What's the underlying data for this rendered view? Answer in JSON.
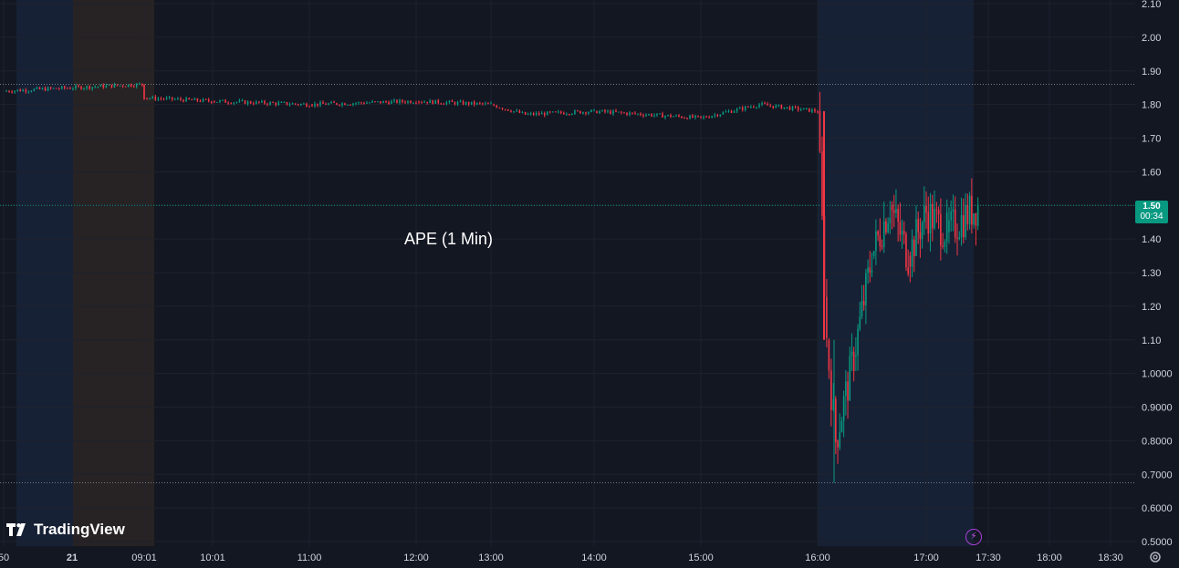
{
  "chart_data": {
    "type": "candlestick",
    "title": "APE (1 Min)",
    "y_ticks": [
      "2.10",
      "2.00",
      "1.90",
      "1.80",
      "1.70",
      "1.60",
      "1.50",
      "1.40",
      "1.30",
      "1.20",
      "1.10",
      "1.0000",
      "0.9000",
      "0.8000",
      "0.7000",
      "0.6000",
      "0.5000"
    ],
    "x_ticks": [
      "50",
      "21",
      "09:01",
      "10:01",
      "11:00",
      "12:00",
      "13:00",
      "14:00",
      "15:00",
      "16:00",
      "17:00",
      "17:30",
      "18:00",
      "18:30"
    ],
    "ylim": [
      0.5,
      2.1
    ],
    "last_price": "1.50",
    "countdown": "00:34",
    "reference_lines": [
      1.86,
      1.5,
      0.675
    ],
    "grid": true,
    "series": [
      {
        "time": "07:50",
        "price": 1.84
      },
      {
        "time": "09:00",
        "price": 1.86
      },
      {
        "time": "09:01",
        "price": 1.82
      },
      {
        "time": "10:00",
        "price": 1.81
      },
      {
        "time": "11:00",
        "price": 1.8
      },
      {
        "time": "12:00",
        "price": 1.81
      },
      {
        "time": "13:00",
        "price": 1.8
      },
      {
        "time": "13:20",
        "price": 1.77
      },
      {
        "time": "14:00",
        "price": 1.78
      },
      {
        "time": "15:00",
        "price": 1.76
      },
      {
        "time": "15:30",
        "price": 1.8
      },
      {
        "time": "16:00",
        "price": 1.78
      },
      {
        "time": "16:05",
        "price": 1.1
      },
      {
        "time": "16:10",
        "price": 0.8
      },
      {
        "time": "16:20",
        "price": 1.05
      },
      {
        "time": "16:30",
        "price": 1.35
      },
      {
        "time": "16:40",
        "price": 1.5
      },
      {
        "time": "16:50",
        "price": 1.35
      },
      {
        "time": "17:00",
        "price": 1.48
      },
      {
        "time": "17:10",
        "price": 1.42
      },
      {
        "time": "17:25",
        "price": 1.5
      }
    ]
  },
  "branding": {
    "logo_text": "TradingView"
  },
  "icons": {
    "bolt": "lightning-bolt-icon",
    "settings": "gear-icon"
  },
  "colors": {
    "background": "#131722",
    "up": "#089981",
    "down": "#f23645",
    "premarket": "#1c2a45",
    "session_orange": "#2a2323",
    "grid": "#1e222d"
  }
}
